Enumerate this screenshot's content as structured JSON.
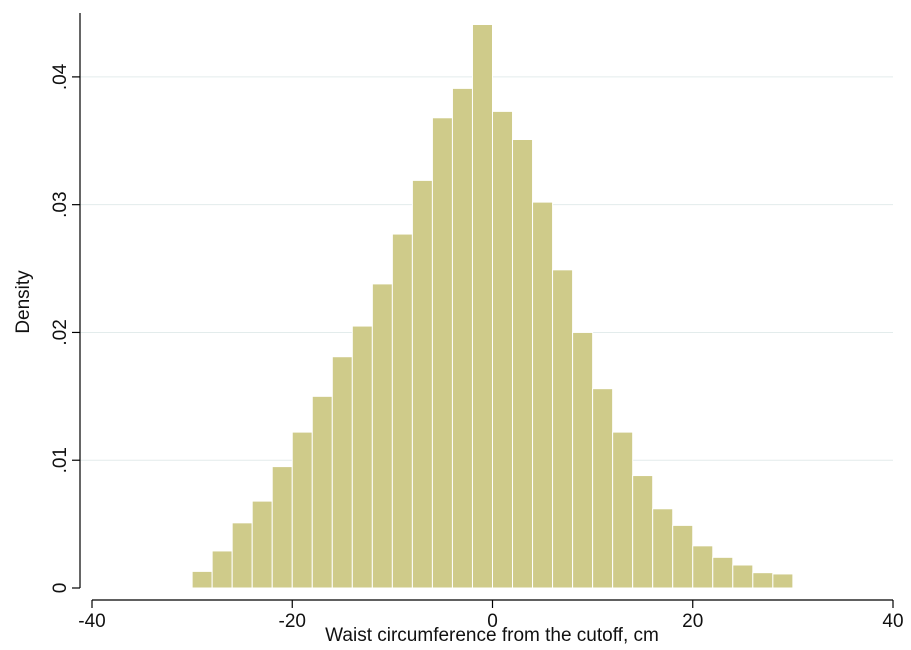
{
  "chart_data": {
    "type": "bar",
    "subtype": "histogram",
    "xlabel": "Waist circumference from the cutoff, cm",
    "ylabel": "Density",
    "xlim": [
      -40,
      40
    ],
    "ylim": [
      0,
      0.045
    ],
    "xticks": [
      -40,
      -20,
      0,
      20,
      40
    ],
    "xtick_labels": [
      "-40",
      "-20",
      "0",
      "20",
      "40"
    ],
    "yticks": [
      0,
      0.01,
      0.02,
      0.03,
      0.04
    ],
    "ytick_labels": [
      "0",
      ".01",
      ".02",
      ".03",
      ".04"
    ],
    "grid": "horizontal",
    "bar_color": "#cfcb8a",
    "bin_width": 2,
    "bin_starts": [
      -30,
      -28,
      -26,
      -24,
      -22,
      -20,
      -18,
      -16,
      -14,
      -12,
      -10,
      -8,
      -6,
      -4,
      -2,
      0,
      2,
      4,
      6,
      8,
      10,
      12,
      14,
      16,
      18,
      20,
      22,
      24,
      26,
      28
    ],
    "values": [
      0.0013,
      0.0029,
      0.0051,
      0.0068,
      0.0095,
      0.0122,
      0.015,
      0.0181,
      0.0205,
      0.0238,
      0.0277,
      0.0319,
      0.0368,
      0.0391,
      0.0441,
      0.0373,
      0.0351,
      0.0302,
      0.0249,
      0.02,
      0.0156,
      0.0122,
      0.0088,
      0.0062,
      0.0049,
      0.0033,
      0.0024,
      0.0018,
      0.0012,
      0.0011
    ]
  }
}
